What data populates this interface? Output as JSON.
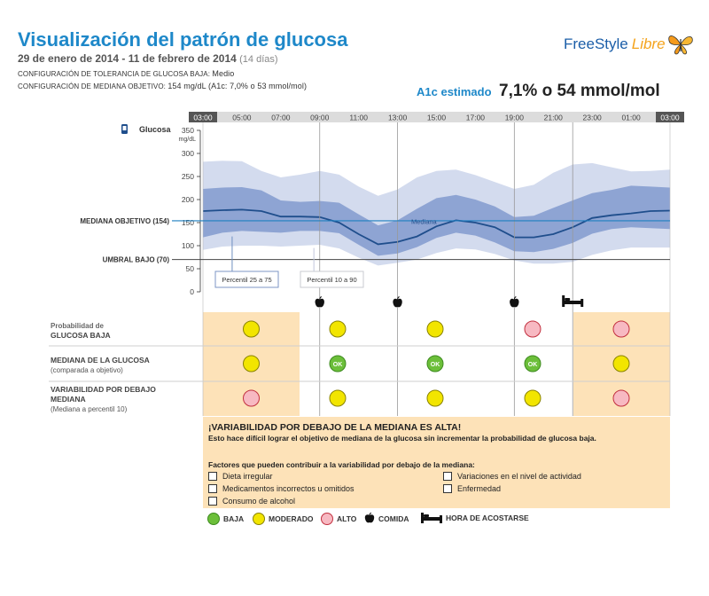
{
  "header": {
    "title": "Visualización del patrón de glucosa",
    "date_range": "29 de enero de 2014 - 11 de febrero de 2014",
    "days": "(14 días)",
    "low_tolerance_label": "CONFIGURACIÓN DE TOLERANCIA DE GLUCOSA BAJA:",
    "low_tolerance_value": "Medio",
    "median_goal_label": "CONFIGURACIÓN DE MEDIANA OBJETIVO:",
    "median_goal_value": "154 mg/dL (A1c: 7,0% o 53 mmol/mol)",
    "logo_text_1": "FreeStyle",
    "logo_text_2": "Libre",
    "a1c_label": "A1c estimado",
    "a1c_value": "7,1% o 54 mmol/mol"
  },
  "chart_data": {
    "type": "area",
    "title": "Glucosa",
    "unit": "mg/dL",
    "x_ticks": [
      "03:00",
      "05:00",
      "07:00",
      "09:00",
      "11:00",
      "13:00",
      "15:00",
      "17:00",
      "19:00",
      "21:00",
      "23:00",
      "01:00",
      "03:00"
    ],
    "y_ticks": [
      0,
      50,
      100,
      150,
      200,
      250,
      300,
      350
    ],
    "ylim": [
      0,
      350
    ],
    "hours": [
      3,
      4,
      5,
      6,
      7,
      8,
      9,
      10,
      11,
      12,
      13,
      14,
      15,
      16,
      17,
      18,
      19,
      20,
      21,
      22,
      23,
      24,
      25,
      26,
      27
    ],
    "series": [
      {
        "name": "Mediana",
        "values": [
          175,
          177,
          178,
          175,
          163,
          163,
          162,
          150,
          125,
          103,
          108,
          120,
          142,
          155,
          150,
          140,
          118,
          118,
          125,
          140,
          160,
          166,
          170,
          175,
          176
        ]
      },
      {
        "name": "Percentil 25",
        "values": [
          118,
          128,
          132,
          130,
          128,
          132,
          132,
          127,
          102,
          78,
          83,
          97,
          117,
          128,
          122,
          107,
          88,
          86,
          93,
          106,
          126,
          136,
          140,
          138,
          136
        ]
      },
      {
        "name": "Percentil 75",
        "values": [
          223,
          226,
          227,
          220,
          198,
          195,
          197,
          193,
          168,
          144,
          155,
          180,
          203,
          210,
          200,
          185,
          162,
          165,
          182,
          198,
          214,
          221,
          230,
          228,
          226
        ]
      },
      {
        "name": "Percentil 10",
        "values": [
          91,
          98,
          100,
          100,
          98,
          100,
          102,
          94,
          74,
          57,
          63,
          70,
          84,
          94,
          92,
          82,
          68,
          61,
          61,
          65,
          80,
          90,
          96,
          96,
          96
        ]
      },
      {
        "name": "Percentil 90",
        "values": [
          282,
          284,
          283,
          262,
          248,
          254,
          262,
          254,
          228,
          208,
          222,
          248,
          262,
          265,
          253,
          238,
          223,
          232,
          258,
          276,
          279,
          270,
          261,
          262,
          265
        ]
      }
    ],
    "reference_lines": [
      {
        "label": "MEDIANA OBJETIVO (154)",
        "value": 154
      },
      {
        "label": "UMBRAL BAJO (70)",
        "value": 70
      }
    ],
    "annotations": {
      "mediana": "Mediana",
      "p25_75": "Percentil 25 a 75",
      "p10_90": "Percentil 10 a 90"
    },
    "meal_times": [
      "09:00",
      "13:00",
      "19:00"
    ],
    "bedtime": "22:00"
  },
  "rows": {
    "low_prob_line1": "Probabilidad de",
    "low_prob_line2": "GLUCOSA BAJA",
    "median_line1": "MEDIANA DE LA GLUCOSA",
    "median_line2": "(comparada a objetivo)",
    "var_line1": "VARIABILIDAD POR DEBAJO",
    "var_line2": "MEDIANA",
    "var_line3": "(Mediana a percentil 10)",
    "ok_text": "OK",
    "periods": [
      "03:00-09:00",
      "09:00-13:00",
      "13:00-19:00",
      "19:00-22:00",
      "22:00-03:00"
    ],
    "low_prob": [
      "moderado",
      "moderado",
      "moderado",
      "alto",
      "alto"
    ],
    "median": [
      "moderado",
      "baja",
      "baja",
      "baja",
      "moderado"
    ],
    "variability": [
      "alto",
      "moderado",
      "moderado",
      "moderado",
      "alto"
    ]
  },
  "alert": {
    "heading": "¡VARIABILIDAD POR DEBAJO DE LA MEDIANA ES ALTA!",
    "description": "Esto hace difícil lograr el objetivo de mediana de la glucosa sin incrementar la probabilidad de glucosa baja.",
    "factors_title": "Factores que pueden contribuir a la variabilidad por debajo de la mediana:",
    "factors": [
      "Dieta irregular",
      "Medicamentos incorrectos u omitidos",
      "Consumo de alcohol",
      "Variaciones en el nivel de actividad",
      "Enfermedad"
    ]
  },
  "legend": {
    "baja": "BAJA",
    "moderado": "MODERADO",
    "alto": "ALTO",
    "comida": "COMIDA",
    "acostarse": "HORA DE ACOSTARSE"
  },
  "colors": {
    "outer_band": "#d3dbee",
    "inner_band": "#8ea4d3",
    "median_line": "#1f4e8c",
    "target_line": "#1e7fc0",
    "header_blue": "#1e88c9",
    "ok_green": "#6cbf3a",
    "moderate_yellow": "#f2e500",
    "high_pink": "#f7b9c2",
    "alert_bg": "#fde2b8"
  }
}
